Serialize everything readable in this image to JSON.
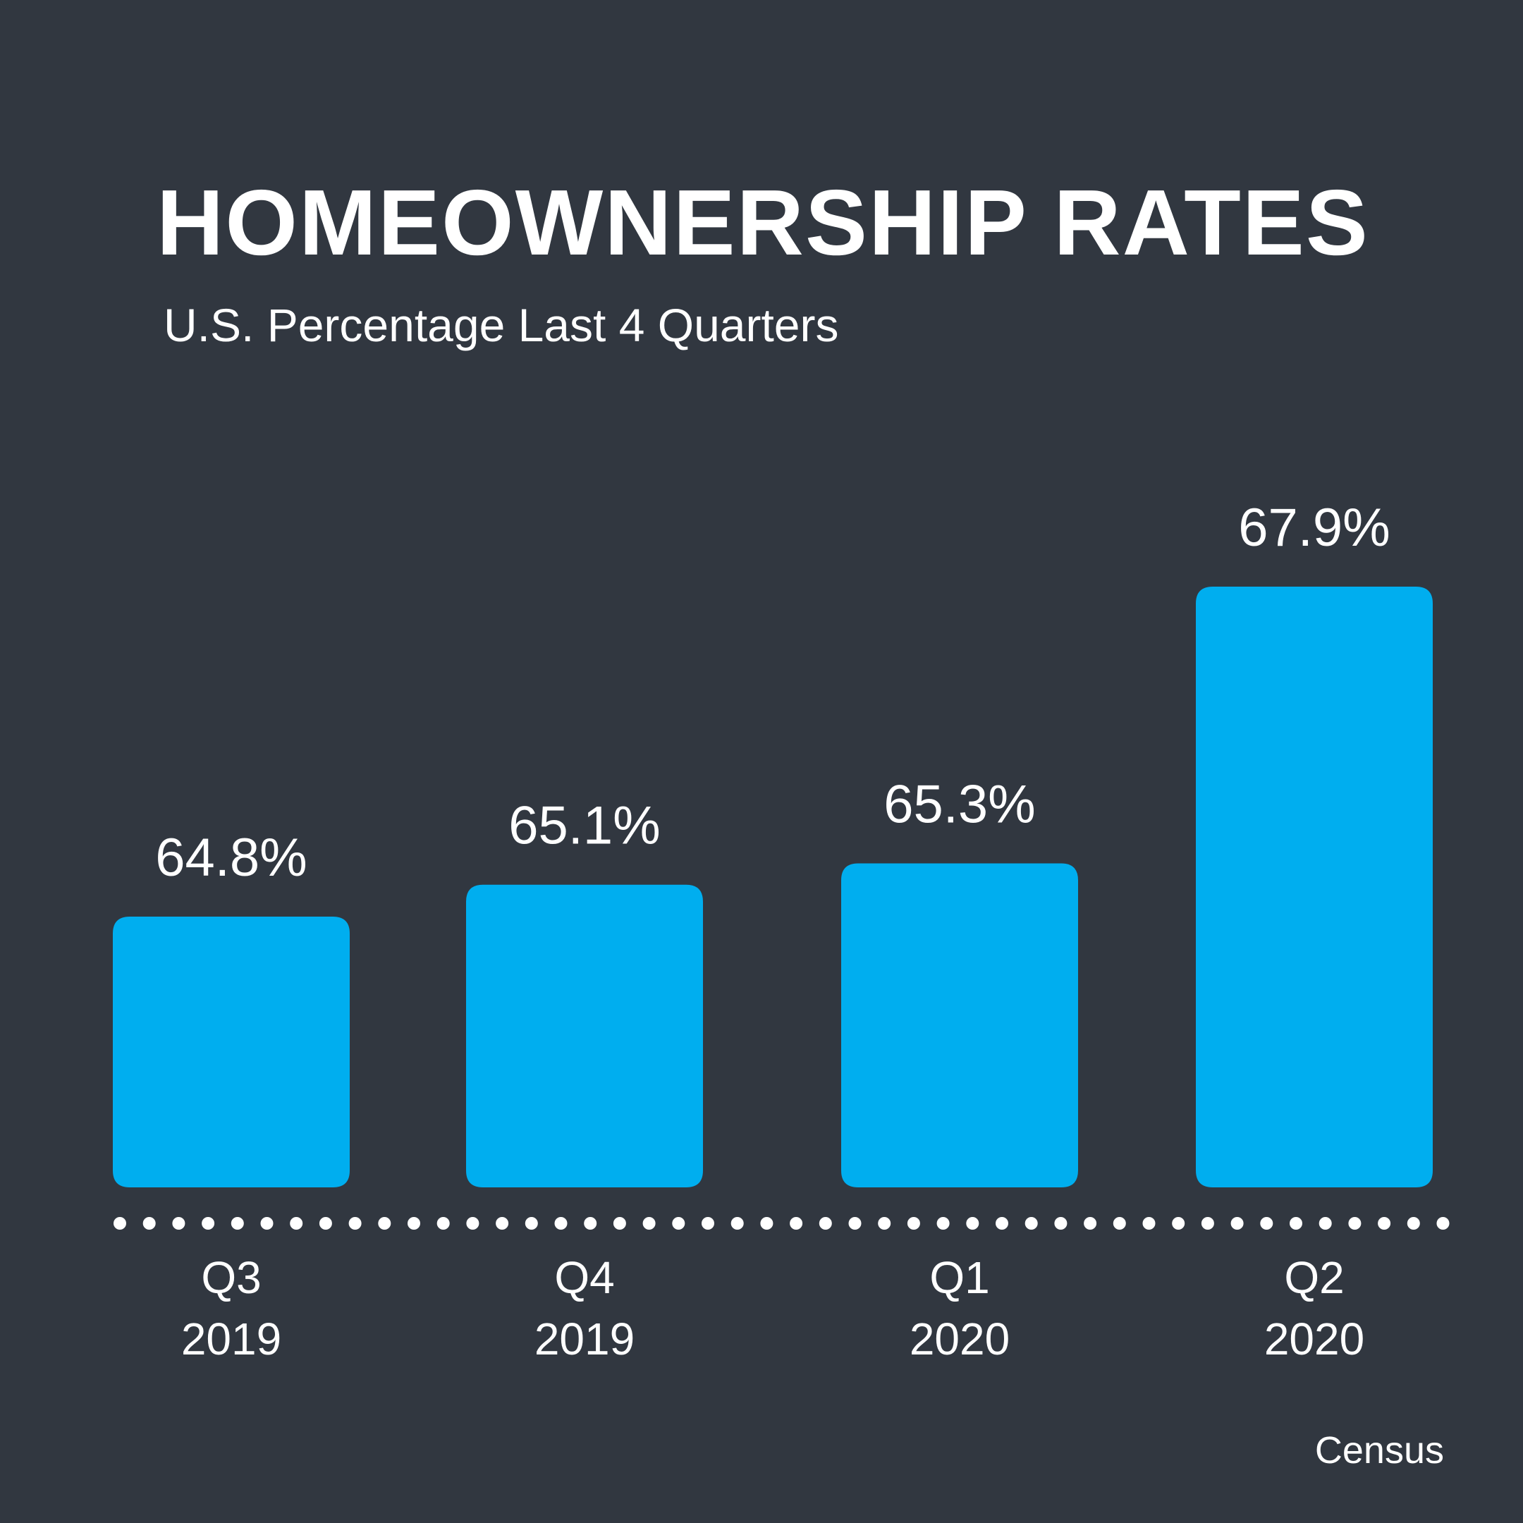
{
  "title": "HOMEOWNERSHIP RATES",
  "subtitle": "U.S. Percentage Last 4 Quarters",
  "source": "Census",
  "colors": {
    "background": "#313740",
    "bar": "#00AEEF",
    "text": "#FFFFFF"
  },
  "chart_data": {
    "type": "bar",
    "categories": [
      "Q3 2019",
      "Q4 2019",
      "Q1 2020",
      "Q2 2020"
    ],
    "category_lines": [
      [
        "Q3",
        "2019"
      ],
      [
        "Q4",
        "2019"
      ],
      [
        "Q1",
        "2020"
      ],
      [
        "Q2",
        "2020"
      ]
    ],
    "values": [
      64.8,
      65.1,
      65.3,
      67.9
    ],
    "value_labels": [
      "64.8%",
      "65.1%",
      "65.3%",
      "67.9%"
    ],
    "title": "HOMEOWNERSHIP RATES",
    "subtitle": "U.S. Percentage Last 4 Quarters",
    "xlabel": "",
    "ylabel": "",
    "grid": false,
    "legend": "none",
    "baseline_style": "dotted"
  }
}
